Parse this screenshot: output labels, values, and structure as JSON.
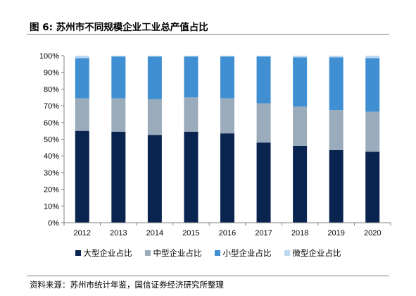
{
  "figure": {
    "title": "图 6:  苏州市不同规模企业工业总产值占比",
    "source": "资料来源：苏州市统计年鉴，国信证券经济研究所整理"
  },
  "chart_data": {
    "type": "bar",
    "stacked": true,
    "categories": [
      "2012",
      "2013",
      "2014",
      "2015",
      "2016",
      "2017",
      "2018",
      "2019",
      "2020"
    ],
    "series": [
      {
        "name": "大型企业占比",
        "color": "#0a2450",
        "values": [
          55,
          54.5,
          52.5,
          54.5,
          53.5,
          48,
          46,
          43.5,
          42.5
        ]
      },
      {
        "name": "中型企业占比",
        "color": "#9aabbc",
        "values": [
          19.5,
          20,
          21.5,
          20.5,
          21,
          23.5,
          23.5,
          24,
          24
        ]
      },
      {
        "name": "小型企业占比",
        "color": "#3f8fd2",
        "values": [
          24,
          25,
          25.5,
          24.5,
          25,
          28,
          29.5,
          31.5,
          32
        ]
      },
      {
        "name": "微型企业占比",
        "color": "#bcd8f2",
        "values": [
          1.5,
          0.5,
          0.5,
          0.5,
          0.5,
          0.5,
          1,
          1,
          1.5
        ]
      }
    ],
    "ylim": [
      0,
      100
    ],
    "yticks": [
      "0%",
      "10%",
      "20%",
      "30%",
      "40%",
      "50%",
      "60%",
      "70%",
      "80%",
      "90%",
      "100%"
    ],
    "grid": false,
    "legend_position": "bottom"
  }
}
